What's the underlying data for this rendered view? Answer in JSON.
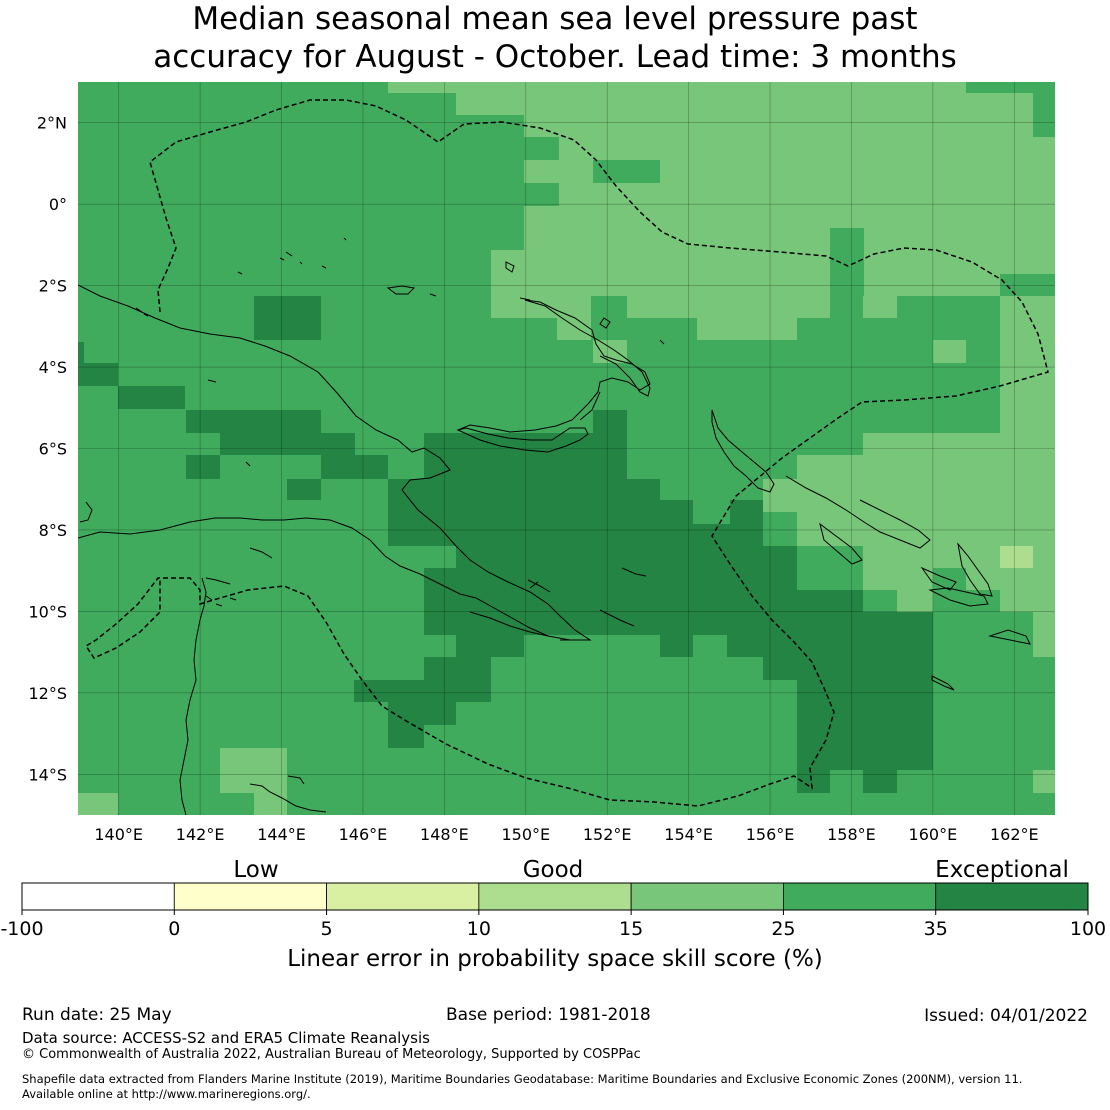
{
  "title": {
    "line1": "Median seasonal mean sea level pressure past",
    "line2": "accuracy for August - October. Lead time: 3 months"
  },
  "map": {
    "lon_range": [
      139,
      163
    ],
    "lat_range": [
      -15,
      3
    ],
    "lon_ticks": [
      {
        "value": 140,
        "label": "140°E"
      },
      {
        "value": 142,
        "label": "142°E"
      },
      {
        "value": 144,
        "label": "144°E"
      },
      {
        "value": 146,
        "label": "146°E"
      },
      {
        "value": 148,
        "label": "148°E"
      },
      {
        "value": 150,
        "label": "150°E"
      },
      {
        "value": 152,
        "label": "152°E"
      },
      {
        "value": 154,
        "label": "154°E"
      },
      {
        "value": 156,
        "label": "156°E"
      },
      {
        "value": 158,
        "label": "158°E"
      },
      {
        "value": 160,
        "label": "160°E"
      },
      {
        "value": 162,
        "label": "162°E"
      }
    ],
    "lat_ticks": [
      {
        "value": 2,
        "label": "2°N"
      },
      {
        "value": 0,
        "label": "0°"
      },
      {
        "value": -2,
        "label": "2°S"
      },
      {
        "value": -4,
        "label": "4°S"
      },
      {
        "value": -6,
        "label": "6°S"
      },
      {
        "value": -8,
        "label": "8°S"
      },
      {
        "value": -10,
        "label": "10°S"
      },
      {
        "value": -12,
        "label": "12°S"
      },
      {
        "value": -14,
        "label": "14°S"
      }
    ],
    "category_colors": {
      "good": "#d9f0a3",
      "c10_15": "#addd8e",
      "c15_25": "#78c679",
      "c25_35": "#41ab5d",
      "c35_100": "#238443"
    }
  },
  "colorbar": {
    "category_labels": [
      "Low",
      "Good",
      "Exceptional"
    ],
    "bins": [
      {
        "from": "-100",
        "to": "0",
        "color": "#ffffff"
      },
      {
        "from": "0",
        "to": "5",
        "color": "#ffffcc"
      },
      {
        "from": "5",
        "to": "10",
        "color": "#d9f0a3"
      },
      {
        "from": "10",
        "to": "15",
        "color": "#addd8e"
      },
      {
        "from": "15",
        "to": "25",
        "color": "#78c679"
      },
      {
        "from": "25",
        "to": "35",
        "color": "#41ab5d"
      },
      {
        "from": "35",
        "to": "100",
        "color": "#238443"
      }
    ],
    "tick_labels": [
      "-100",
      "0",
      "5",
      "10",
      "15",
      "25",
      "35",
      "100"
    ],
    "label": "Linear error in probability space skill score (%)"
  },
  "footer": {
    "run_date": "Run date: 25 May",
    "base_period": "Base period: 1981-2018",
    "issued": "Issued: 04/01/2022",
    "data_source": "Data source: ACCESS-S2 and ERA5 Climate Reanalysis",
    "copyright": "© Commonwealth of Australia 2022, Australian Bureau of Meteorology, Supported by COSPPac",
    "shapefile_line1": "Shapefile data extracted from Flanders Marine Institute (2019), Maritime Boundaries Geodatabase: Maritime Boundaries and Exclusive Economic Zones (200NM), version 11.",
    "shapefile_line2": "Available online at http://www.marineregions.org/."
  }
}
